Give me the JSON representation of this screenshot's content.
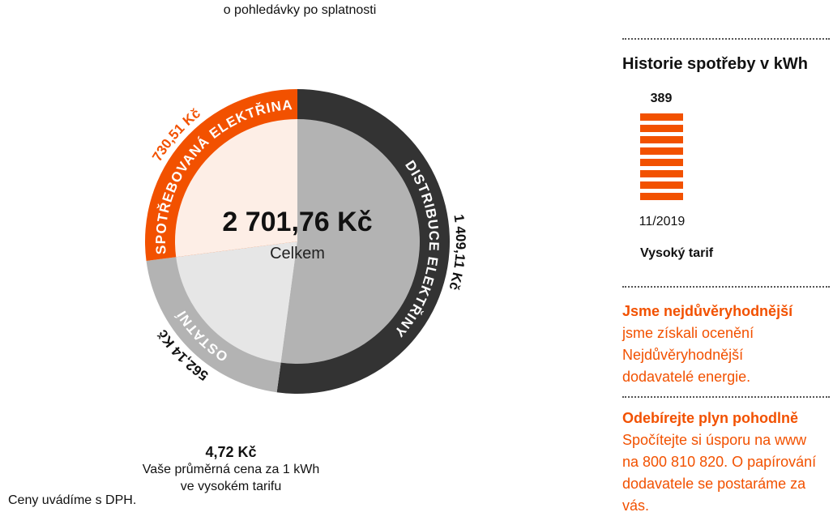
{
  "top_note": "o pohledávky po splatnosti",
  "colors": {
    "orange": "#f25100",
    "dark": "#333333",
    "gray": "#b3b3b3",
    "light_gray": "#e6e6e6",
    "light_orange": "#fdeee6"
  },
  "chart_data": [
    {
      "type": "pie",
      "variant": "donut",
      "total": {
        "value": "2 701,76 Kč",
        "label": "Celkem"
      },
      "slices": [
        {
          "name": "DISTRIBUCE ELEKTŘINY",
          "value": 1409.11,
          "value_label": "1 409,11 Kč",
          "ring_color": "#333333",
          "fill_color": "#b3b3b3",
          "value_color": "#111111"
        },
        {
          "name": "OSTATNÍ",
          "value": 562.14,
          "value_label": "562,14 Kč",
          "ring_color": "#b3b3b3",
          "fill_color": "#e6e6e6",
          "value_color": "#111111"
        },
        {
          "name": "SPOTŘEBOVANÁ ELEKTŘINA",
          "value": 730.51,
          "value_label": "730,51 Kč",
          "ring_color": "#f25100",
          "fill_color": "#fdeee6",
          "value_color": "#f25100"
        }
      ]
    },
    {
      "type": "bar",
      "title": "Historie spotřeby v kWh",
      "categories": [
        "11/2019"
      ],
      "values": [
        389
      ],
      "value_labels": [
        "389"
      ],
      "series_label": "Vysoký tarif",
      "color": "#f25100"
    }
  ],
  "avg_price": {
    "value": "4,72 Kč",
    "line1": "Vaše průměrná cena za 1 kWh",
    "line2": "ve vysokém tarifu"
  },
  "vat_note": "Ceny uvádíme s DPH.",
  "promo1": {
    "title": "Jsme nejdůvěryhodnější",
    "line1": "jsme získali ocenění Nejdůvěryhodnější",
    "line2": "dodavatelé energie."
  },
  "promo2": {
    "title": "Odebírejte plyn pohodlně",
    "line1": "Spočítejte si úsporu na www",
    "line2": "na 800 810 820. O papírování",
    "line3": "dodavatele se postaráme za vás."
  }
}
